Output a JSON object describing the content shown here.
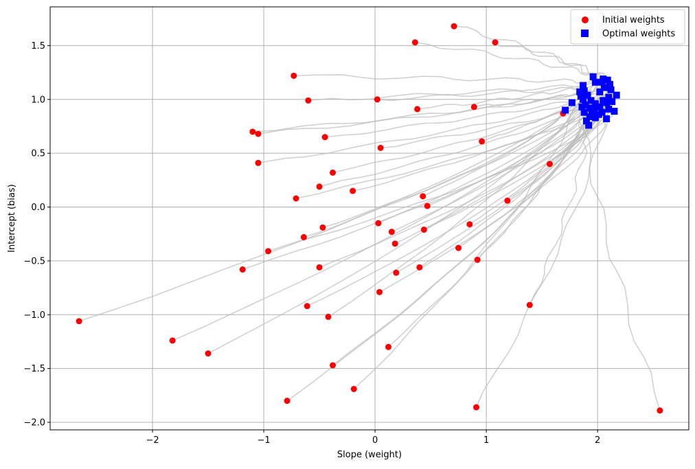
{
  "chart_data": {
    "type": "scatter",
    "title": "",
    "xlabel": "Slope (weight)",
    "ylabel": "Intercept (bias)",
    "xlim": [
      -2.92,
      2.82
    ],
    "ylim": [
      -2.07,
      1.86
    ],
    "xticks": [
      -2,
      -1,
      0,
      1,
      2
    ],
    "yticks": [
      -2.0,
      -1.5,
      -1.0,
      -0.5,
      0.0,
      0.5,
      1.0,
      1.5
    ],
    "xtick_labels": [
      "−2",
      "−1",
      "0",
      "1",
      "2"
    ],
    "ytick_labels": [
      "−2.0",
      "−1.5",
      "−1.0",
      "−0.5",
      "0.0",
      "0.5",
      "1.0",
      "1.5"
    ],
    "grid": true,
    "legend_position": "top-right",
    "legend": [
      "Initial weights",
      "Optimal weights"
    ],
    "colors": {
      "initial": "#ff0000",
      "optimal": "#0000ff",
      "path": "#bdbdbd",
      "grid": "#b0b0b0"
    },
    "series": [
      {
        "name": "Initial weights",
        "marker": "circle",
        "points": [
          [
            0.71,
            1.68
          ],
          [
            0.36,
            1.53
          ],
          [
            1.08,
            1.53
          ],
          [
            -0.73,
            1.22
          ],
          [
            -0.6,
            0.99
          ],
          [
            0.02,
            1.0
          ],
          [
            0.38,
            0.91
          ],
          [
            0.89,
            0.93
          ],
          [
            1.69,
            0.87
          ],
          [
            -1.1,
            0.7
          ],
          [
            -1.05,
            0.68
          ],
          [
            -0.45,
            0.65
          ],
          [
            0.05,
            0.55
          ],
          [
            0.96,
            0.61
          ],
          [
            -1.05,
            0.41
          ],
          [
            1.57,
            0.4
          ],
          [
            -0.38,
            0.32
          ],
          [
            -0.5,
            0.19
          ],
          [
            -0.2,
            0.15
          ],
          [
            -0.71,
            0.08
          ],
          [
            0.43,
            0.1
          ],
          [
            0.47,
            0.01
          ],
          [
            1.19,
            0.06
          ],
          [
            0.03,
            -0.15
          ],
          [
            0.85,
            -0.16
          ],
          [
            -0.47,
            -0.19
          ],
          [
            0.15,
            -0.23
          ],
          [
            0.44,
            -0.21
          ],
          [
            -0.64,
            -0.28
          ],
          [
            0.18,
            -0.34
          ],
          [
            -0.96,
            -0.41
          ],
          [
            0.75,
            -0.38
          ],
          [
            0.92,
            -0.49
          ],
          [
            -1.19,
            -0.58
          ],
          [
            -0.5,
            -0.56
          ],
          [
            0.4,
            -0.56
          ],
          [
            0.19,
            -0.61
          ],
          [
            0.04,
            -0.79
          ],
          [
            -0.61,
            -0.92
          ],
          [
            1.39,
            -0.91
          ],
          [
            -0.42,
            -1.02
          ],
          [
            -2.66,
            -1.06
          ],
          [
            -1.82,
            -1.24
          ],
          [
            -1.5,
            -1.36
          ],
          [
            0.12,
            -1.3
          ],
          [
            -0.38,
            -1.47
          ],
          [
            -0.19,
            -1.69
          ],
          [
            -0.79,
            -1.8
          ],
          [
            0.91,
            -1.86
          ],
          [
            2.56,
            -1.89
          ]
        ]
      },
      {
        "name": "Optimal weights",
        "marker": "square",
        "points": [
          [
            1.96,
            1.21
          ],
          [
            2.05,
            1.19
          ],
          [
            2.09,
            1.18
          ],
          [
            1.98,
            1.16
          ],
          [
            2.04,
            1.16
          ],
          [
            2.11,
            1.14
          ],
          [
            1.87,
            1.13
          ],
          [
            2.06,
            1.11
          ],
          [
            2.12,
            1.09
          ],
          [
            1.84,
            1.07
          ],
          [
            1.88,
            1.08
          ],
          [
            2.02,
            1.07
          ],
          [
            2.17,
            1.04
          ],
          [
            1.85,
            1.03
          ],
          [
            1.91,
            1.04
          ],
          [
            2.1,
            1.02
          ],
          [
            1.87,
            1.0
          ],
          [
            1.94,
            0.99
          ],
          [
            2.05,
            0.99
          ],
          [
            2.13,
            0.98
          ],
          [
            1.77,
            0.97
          ],
          [
            1.98,
            0.96
          ],
          [
            2.08,
            0.97
          ],
          [
            1.89,
            0.95
          ],
          [
            2.02,
            0.93
          ],
          [
            1.86,
            0.93
          ],
          [
            1.93,
            0.92
          ],
          [
            2.1,
            0.91
          ],
          [
            1.71,
            0.9
          ],
          [
            1.97,
            0.9
          ],
          [
            2.15,
            0.89
          ],
          [
            2.04,
            0.88
          ],
          [
            1.88,
            0.88
          ],
          [
            1.95,
            0.86
          ],
          [
            2.01,
            0.86
          ],
          [
            1.93,
            0.84
          ],
          [
            1.98,
            0.83
          ],
          [
            2.08,
            0.82
          ],
          [
            1.9,
            0.8
          ],
          [
            1.92,
            0.76
          ]
        ]
      }
    ]
  }
}
